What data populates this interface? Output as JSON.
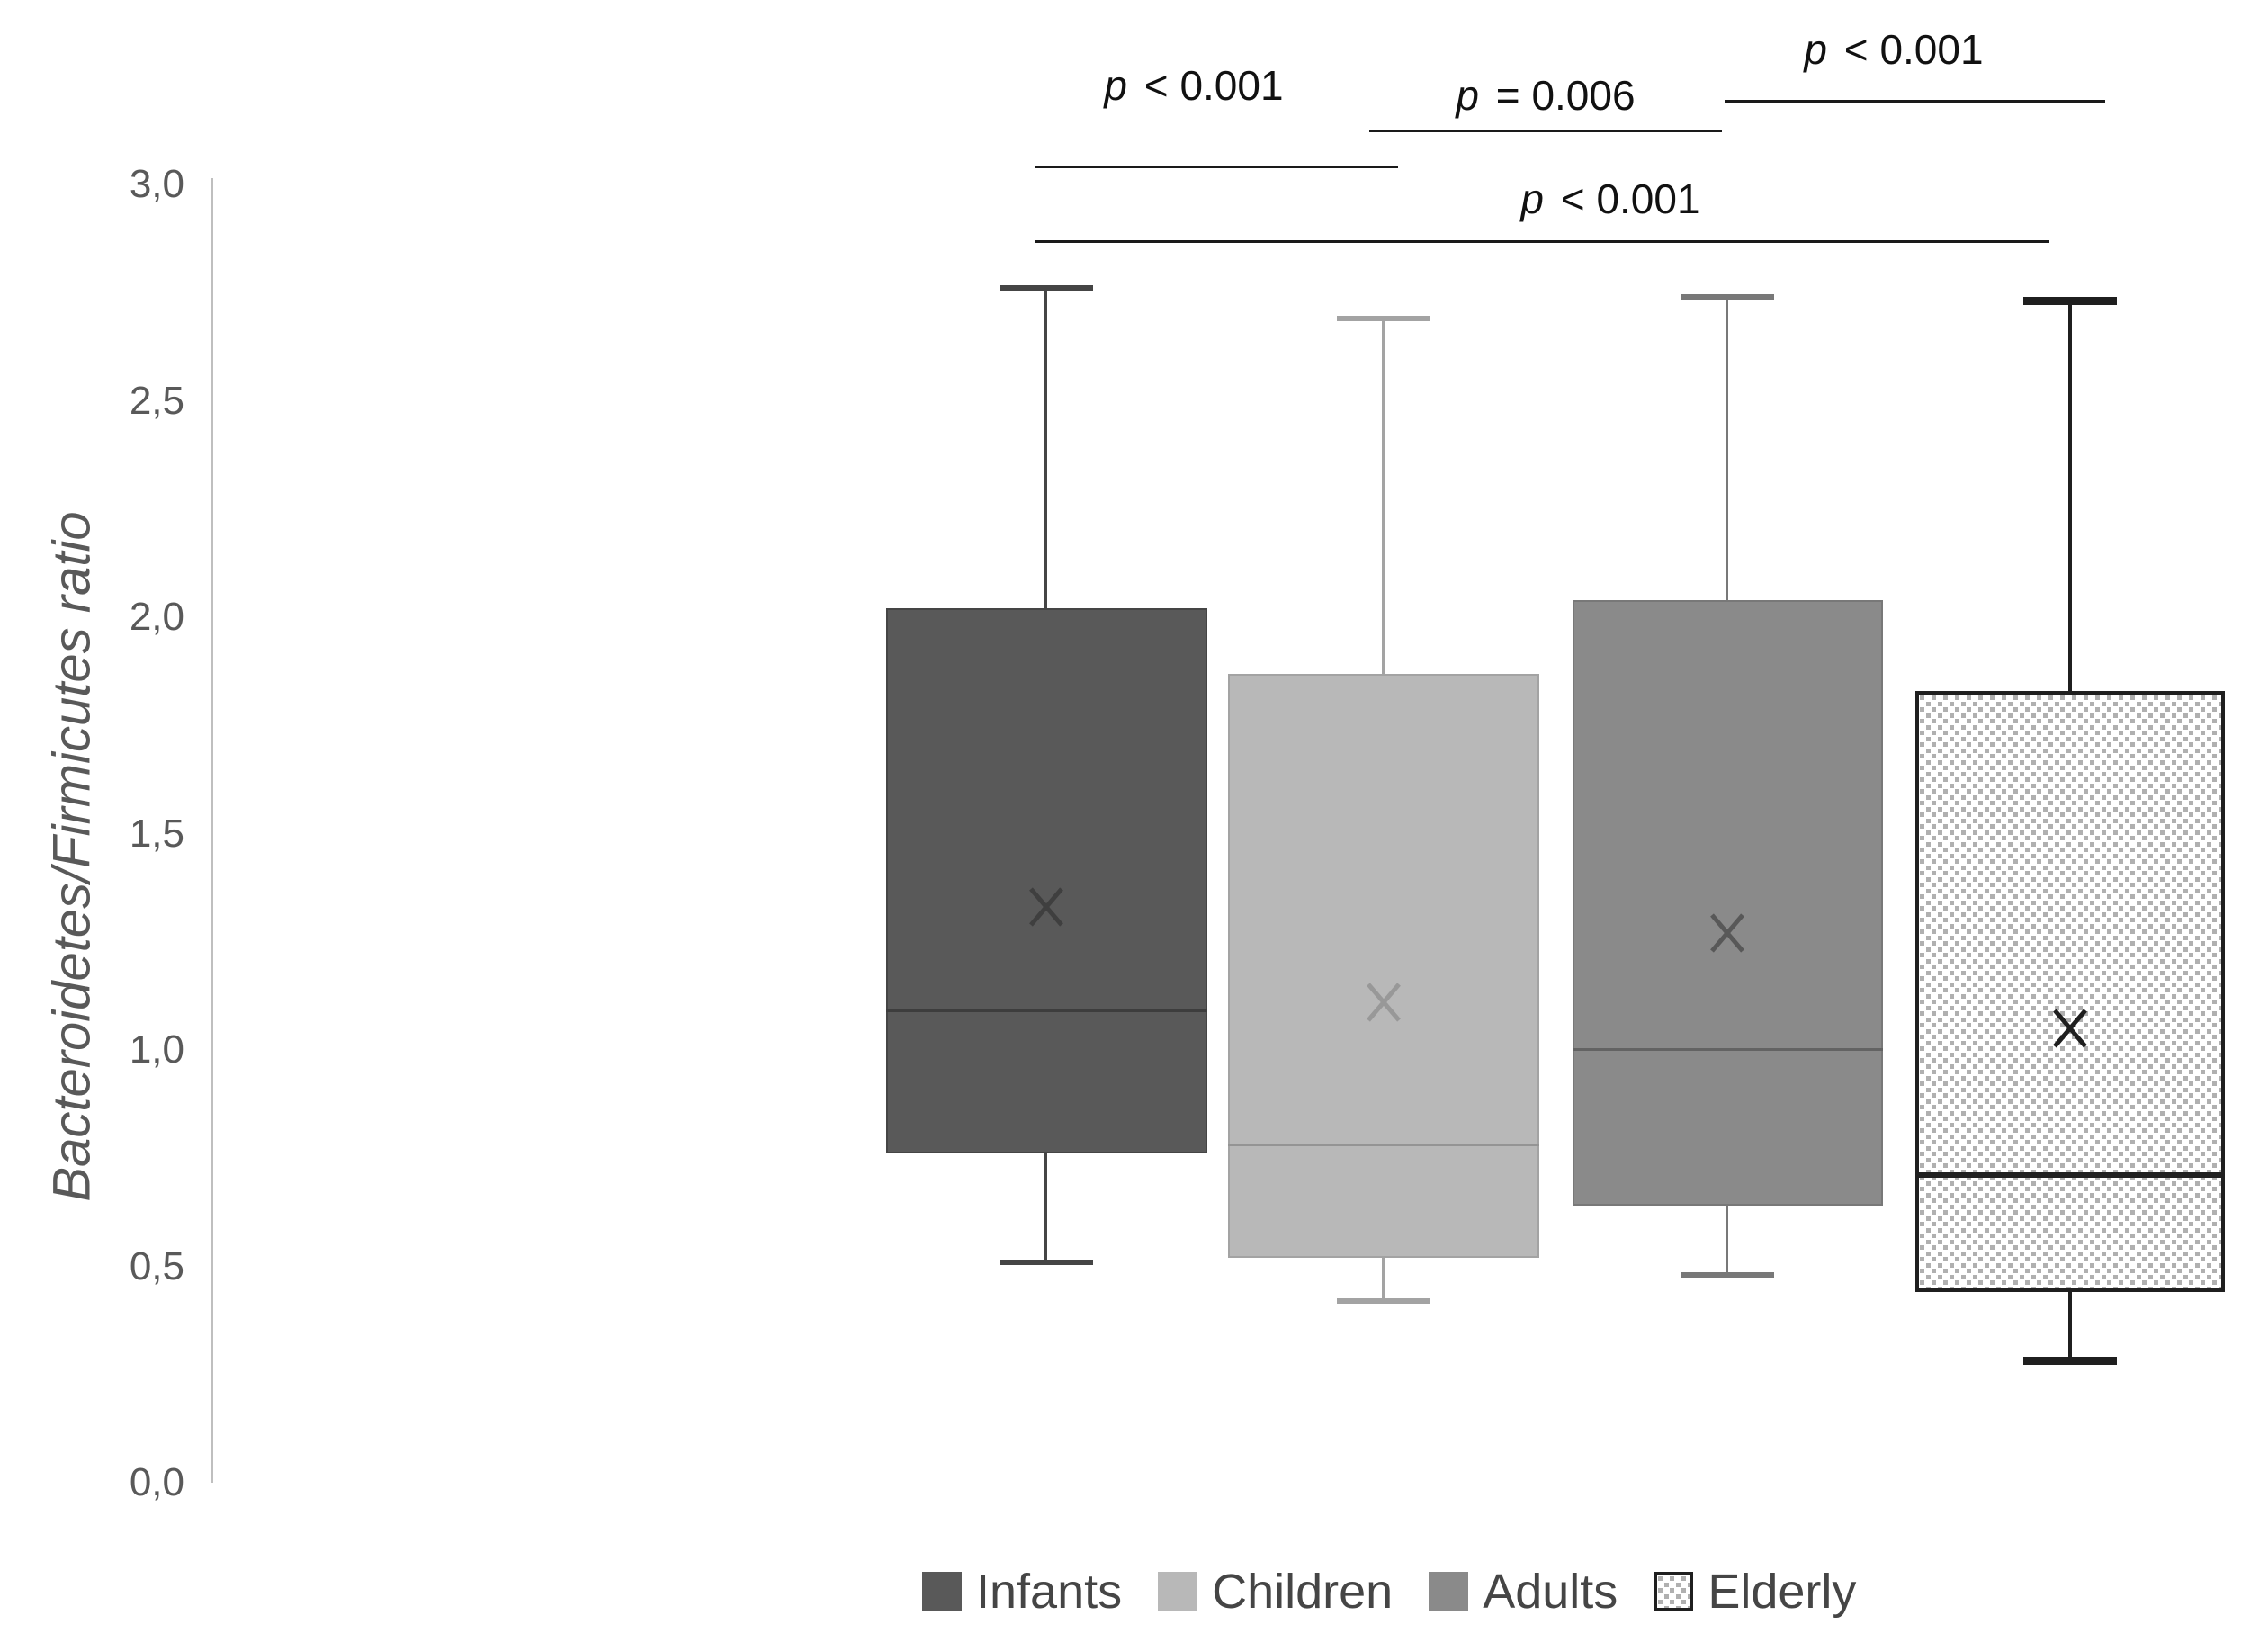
{
  "chart_data": {
    "type": "boxplot",
    "title": "",
    "ylabel": "Bacteroidetes/Firmicutes ratio",
    "ylim": [
      0.0,
      3.0
    ],
    "ytick_step": 0.5,
    "ytick_labels": [
      "0,0",
      "0,5",
      "1,0",
      "1,5",
      "2,0",
      "2,5",
      "3,0"
    ],
    "ytick_values": [
      0.0,
      0.5,
      1.0,
      1.5,
      2.0,
      2.5,
      3.0
    ],
    "decimal_separator": ",",
    "grid": "off",
    "legend_position": "bottom",
    "categories": [
      "Infants",
      "Children",
      "Adults",
      "Elderly"
    ],
    "series": [
      {
        "name": "Infants",
        "whisker_low": 0.51,
        "q1": 0.76,
        "median": 1.09,
        "mean": 1.33,
        "q3": 2.02,
        "whisker_high": 2.76,
        "fill": "#595959",
        "edge": "#454545",
        "line": "#3d3d3d",
        "mean_color": "#3f3f3f",
        "pattern": false
      },
      {
        "name": "Children",
        "whisker_low": 0.42,
        "q1": 0.52,
        "median": 0.78,
        "mean": 1.11,
        "q3": 1.87,
        "whisker_high": 2.69,
        "fill": "#b8b8b8",
        "edge": "#a3a3a3",
        "line": "#949494",
        "mean_color": "#989898",
        "pattern": false
      },
      {
        "name": "Adults",
        "whisker_low": 0.48,
        "q1": 0.64,
        "median": 1.0,
        "mean": 1.27,
        "q3": 2.04,
        "whisker_high": 2.74,
        "fill": "#8a8a8a",
        "edge": "#787878",
        "line": "#636363",
        "mean_color": "#585858",
        "pattern": false
      },
      {
        "name": "Elderly",
        "whisker_low": 0.28,
        "q1": 0.44,
        "median": 0.71,
        "mean": 1.05,
        "q3": 1.83,
        "whisker_high": 2.73,
        "fill": "#ffffff",
        "edge": "#1f1f1f",
        "line": "#1f1f1f",
        "mean_color": "#1f1f1f",
        "pattern": true,
        "pattern_color": "#b0b0b0"
      }
    ],
    "annotations": [
      {
        "label": "p < 0.001",
        "between": [
          "Infants",
          "Children"
        ]
      },
      {
        "label": "p = 0.006",
        "between": [
          "Children",
          "Adults"
        ]
      },
      {
        "label": "p < 0.001",
        "between": [
          "Adults",
          "Elderly"
        ]
      },
      {
        "label": "p < 0.001",
        "between": [
          "Infants",
          "Elderly"
        ]
      }
    ]
  }
}
